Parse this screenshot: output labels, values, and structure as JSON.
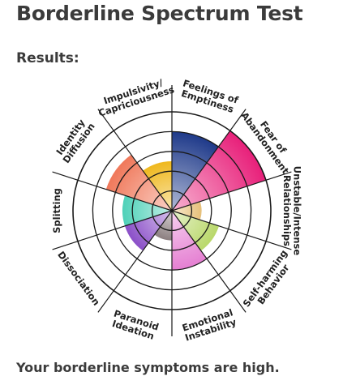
{
  "page": {
    "title": "Borderline Spectrum Test",
    "results_heading": "Results:",
    "summary": "Your borderline symptoms are high."
  },
  "chart_data": {
    "type": "polar-area",
    "title": "",
    "scale_max": 5,
    "rings": 5,
    "grid": true,
    "categories": [
      {
        "lines": [
          "Feelings of",
          "Emptiness"
        ],
        "value": 4.0,
        "color": "#1f3a8a"
      },
      {
        "lines": [
          "Fear of",
          "Abandonment"
        ],
        "value": 5.0,
        "color": "#e8207a"
      },
      {
        "lines": [
          "Unstable/Intense",
          "Relationships"
        ],
        "value": 1.5,
        "color": "#e6c07a"
      },
      {
        "lines": [
          "Self-harming",
          "Behavior"
        ],
        "value": 2.5,
        "color": "#b9d86a"
      },
      {
        "lines": [
          "Emotional",
          "Instability"
        ],
        "value": 3.0,
        "color": "#e57fd2"
      },
      {
        "lines": [
          "Paranoid",
          "Ideation"
        ],
        "value": 1.5,
        "color": "#8c7f80"
      },
      {
        "lines": [
          "Dissociation"
        ],
        "value": 2.5,
        "color": "#8b4fc8"
      },
      {
        "lines": [
          "Splitting"
        ],
        "value": 2.5,
        "color": "#4fd1b8"
      },
      {
        "lines": [
          "Identity",
          "Diffusion"
        ],
        "value": 3.5,
        "color": "#f0785a"
      },
      {
        "lines": [
          "Impulsivity/",
          "Capriciousness"
        ],
        "value": 2.5,
        "color": "#efb81e"
      }
    ]
  }
}
